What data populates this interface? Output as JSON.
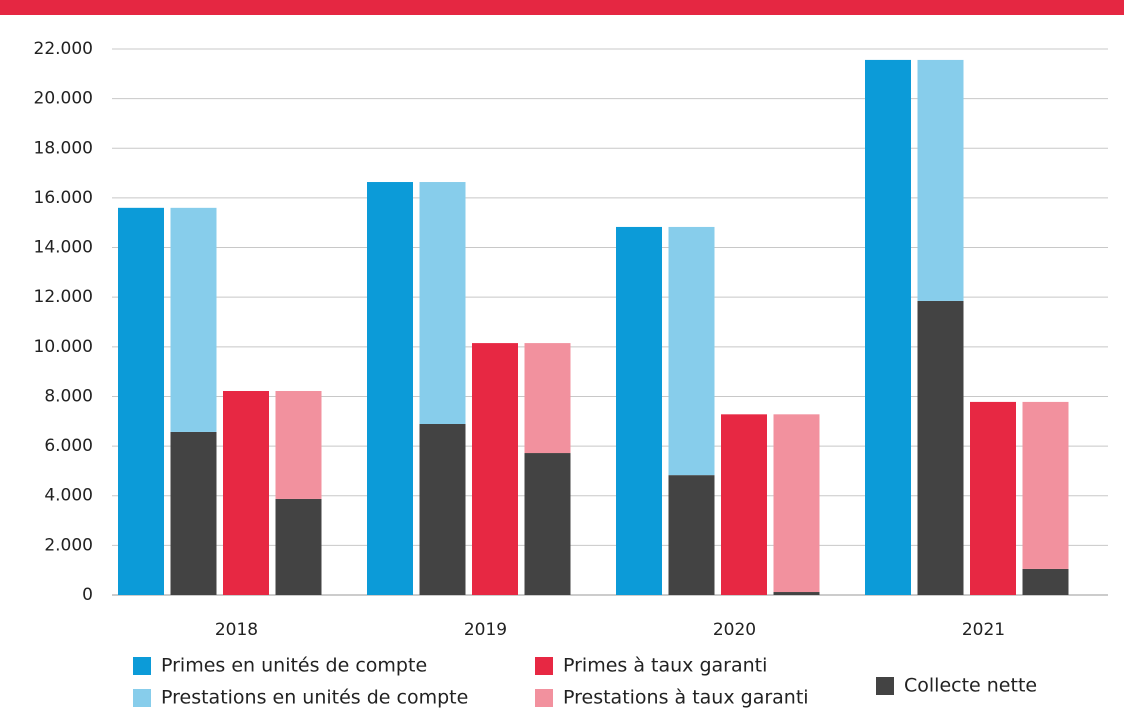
{
  "chart_data": {
    "type": "bar",
    "categories": [
      "2018",
      "2019",
      "2020",
      "2021"
    ],
    "series": [
      {
        "name": "Primes en unités de compte",
        "color": "#0c9bd8",
        "values": [
          15600,
          16640,
          14830,
          21560
        ]
      },
      {
        "name": "Prestations en unités de compte",
        "color": "#87cdeb",
        "values": [
          9030,
          9750,
          10000,
          9710
        ]
      },
      {
        "name": "Primes à taux garanti",
        "color": "#e72843",
        "values": [
          8220,
          10150,
          7280,
          7780
        ]
      },
      {
        "name": "Prestations à taux garanti",
        "color": "#f2919e",
        "values": [
          4350,
          4430,
          7160,
          6730
        ]
      },
      {
        "name": "Collecte nette",
        "color": "#434343",
        "values": [
          [
            6570,
            3870
          ],
          [
            6890,
            5720
          ],
          [
            4830,
            120
          ],
          [
            11850,
            1050
          ]
        ]
      }
    ],
    "ylim": [
      0,
      22000
    ],
    "yticks": [
      0,
      {
        "value": 2000,
        "label": "2.000"
      },
      {
        "value": 4000,
        "label": "4.000"
      },
      {
        "value": 6000,
        "label": "6.000"
      },
      {
        "value": 8000,
        "label": "8.000"
      },
      {
        "value": 10000,
        "label": "10.000"
      },
      {
        "value": 12000,
        "label": "12.000"
      },
      {
        "value": 14000,
        "label": "14.000"
      },
      {
        "value": 16000,
        "label": "16.000"
      },
      {
        "value": 18000,
        "label": "18.000"
      },
      {
        "value": 20000,
        "label": "20.000"
      },
      {
        "value": 22000,
        "label": "22.000"
      }
    ],
    "grid": true
  }
}
